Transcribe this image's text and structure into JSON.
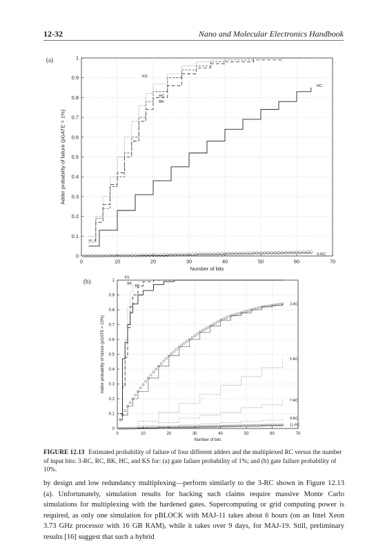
{
  "header": {
    "page_number": "12-32",
    "book_title": "Nano and Molecular Electronics Handbook"
  },
  "figure": {
    "panel_a_label": "(a)",
    "panel_b_label": "(b)",
    "caption_label": "FIGURE 12.13",
    "caption_text": "Estimated probability of failure of four different adders and the multiplexed RC versus the number of input bits: 3-RC, RC, BK, HC, and KS for: (a) gate failure probability of 1%; and (b) gate failure probability of 10%."
  },
  "body_text": "by design and low redundancy multiplexing—perform similarly to the 3-RC shown in Figure 12.13 (a). Unfortunately, simulation results for backing such claims require massive Monte Carlo simulations for multiplexing with the hardened gates. Supercomputing or grid computing power is required, as only one simulation for pBLOCK with MAJ-11 takes about 6 hours (on an Intel Xeon 3.73 GHz processor with 16 GB RAM), while it takes over 9 days, for MAJ-19. Still, preliminary results [16] suggest that such a hybrid",
  "chart_data": [
    {
      "type": "line",
      "panel": "(a)",
      "xlabel": "Number of bits",
      "ylabel": "Adder probability of failure (pGATE = 1%)",
      "xlim": [
        0,
        70
      ],
      "ylim": [
        0,
        1
      ],
      "xticks": [
        0,
        10,
        20,
        30,
        40,
        50,
        60,
        70
      ],
      "yticks": [
        0,
        0.1,
        0.2,
        0.3,
        0.4,
        0.5,
        0.6,
        0.7,
        0.8,
        0.9,
        1
      ],
      "grid": true,
      "series": [
        {
          "name": "RC",
          "x": [
            2,
            5,
            10,
            15,
            20,
            25,
            30,
            35,
            40,
            45,
            50,
            55,
            60,
            64
          ],
          "y": [
            0.05,
            0.13,
            0.23,
            0.31,
            0.38,
            0.45,
            0.52,
            0.58,
            0.64,
            0.69,
            0.74,
            0.78,
            0.83,
            0.85
          ]
        },
        {
          "name": "BK",
          "x": [
            2,
            4,
            6,
            8,
            10,
            12,
            14,
            16,
            18,
            20,
            24,
            28,
            32,
            36,
            40,
            48,
            56,
            64
          ],
          "y": [
            0.08,
            0.17,
            0.26,
            0.36,
            0.42,
            0.5,
            0.58,
            0.68,
            0.74,
            0.8,
            0.86,
            0.92,
            0.95,
            0.97,
            0.98,
            0.99,
            1.0,
            1.0
          ]
        },
        {
          "name": "HC",
          "x": [
            2,
            4,
            6,
            8,
            10,
            12,
            14,
            16,
            18,
            20,
            24,
            28,
            32,
            36,
            40,
            48,
            56,
            64
          ],
          "y": [
            0.07,
            0.19,
            0.24,
            0.35,
            0.4,
            0.52,
            0.6,
            0.7,
            0.78,
            0.83,
            0.9,
            0.94,
            0.96,
            0.98,
            0.99,
            1.0,
            1.0,
            1.0
          ]
        },
        {
          "name": "KS",
          "x": [
            2,
            4,
            6,
            8,
            10,
            12,
            14,
            16,
            18,
            20,
            24,
            28,
            32,
            36,
            40,
            48,
            56,
            64
          ],
          "y": [
            0.1,
            0.2,
            0.3,
            0.4,
            0.5,
            0.6,
            0.68,
            0.76,
            0.82,
            0.87,
            0.92,
            0.96,
            0.98,
            0.99,
            1.0,
            1.0,
            1.0,
            1.0
          ]
        },
        {
          "name": "3-RC",
          "x": [
            1,
            8,
            16,
            24,
            32,
            40,
            48,
            56,
            64
          ],
          "y": [
            0.0,
            0.001,
            0.003,
            0.005,
            0.008,
            0.011,
            0.014,
            0.016,
            0.019
          ]
        }
      ]
    },
    {
      "type": "line",
      "panel": "(b)",
      "xlabel": "Number of bits",
      "ylabel": "Adder probability of failure (pGATE = 10%)",
      "xlim": [
        0,
        70
      ],
      "ylim": [
        0,
        1
      ],
      "xticks": [
        0,
        10,
        20,
        30,
        40,
        50,
        60,
        70
      ],
      "yticks": [
        0,
        0.1,
        0.2,
        0.3,
        0.4,
        0.5,
        0.6,
        0.7,
        0.8,
        0.9,
        1
      ],
      "grid": true,
      "series": [
        {
          "name": "KS",
          "x": [
            1,
            2,
            3,
            4,
            5,
            6,
            8,
            10,
            14,
            20,
            30,
            64
          ],
          "y": [
            0.05,
            0.3,
            0.6,
            0.82,
            0.92,
            0.97,
            0.99,
            1.0,
            1.0,
            1.0,
            1.0,
            1.0
          ]
        },
        {
          "name": "BK",
          "x": [
            1,
            2,
            3,
            4,
            5,
            6,
            8,
            10,
            14,
            20,
            30,
            64
          ],
          "y": [
            0.06,
            0.28,
            0.48,
            0.68,
            0.82,
            0.9,
            0.96,
            0.99,
            1.0,
            1.0,
            1.0,
            1.0
          ]
        },
        {
          "name": "RC",
          "x": [
            1,
            2,
            3,
            4,
            5,
            6,
            8,
            10,
            14,
            18,
            22,
            26,
            30,
            64
          ],
          "y": [
            0.1,
            0.47,
            0.58,
            0.7,
            0.78,
            0.84,
            0.9,
            0.93,
            0.97,
            0.99,
            1.0,
            1.0,
            1.0,
            1.0
          ]
        },
        {
          "name": "3-RC",
          "x": [
            1,
            2,
            4,
            6,
            8,
            12,
            16,
            20,
            24,
            28,
            32,
            36,
            40,
            44,
            48,
            52,
            56,
            60,
            64
          ],
          "y": [
            0.06,
            0.09,
            0.15,
            0.2,
            0.25,
            0.34,
            0.42,
            0.49,
            0.55,
            0.6,
            0.65,
            0.69,
            0.73,
            0.76,
            0.78,
            0.8,
            0.82,
            0.83,
            0.84
          ]
        },
        {
          "name": "5-RC",
          "x": [
            1,
            8,
            16,
            24,
            32,
            40,
            48,
            56,
            64
          ],
          "y": [
            0.0,
            0.05,
            0.11,
            0.17,
            0.23,
            0.29,
            0.35,
            0.41,
            0.47
          ]
        },
        {
          "name": "7-RC",
          "x": [
            1,
            8,
            16,
            24,
            32,
            40,
            48,
            56,
            64
          ],
          "y": [
            0.0,
            0.02,
            0.04,
            0.07,
            0.09,
            0.11,
            0.14,
            0.16,
            0.19
          ]
        },
        {
          "name": "9-RC",
          "x": [
            1,
            8,
            16,
            24,
            32,
            40,
            48,
            56,
            64
          ],
          "y": [
            0.0,
            0.008,
            0.016,
            0.024,
            0.032,
            0.04,
            0.048,
            0.056,
            0.065
          ]
        },
        {
          "name": "11-RC",
          "x": [
            1,
            8,
            16,
            24,
            32,
            40,
            48,
            56,
            64
          ],
          "y": [
            0.0,
            0.003,
            0.006,
            0.009,
            0.012,
            0.015,
            0.018,
            0.021,
            0.024
          ]
        }
      ]
    }
  ]
}
